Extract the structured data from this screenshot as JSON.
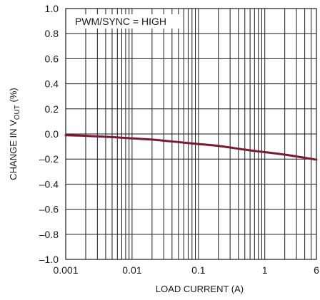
{
  "chart_data": {
    "type": "line",
    "annotation": "PWM/SYNC = HIGH",
    "xlabel": "LOAD CURRENT (A)",
    "ylabel": {
      "prefix": "CHANGE IN V",
      "subscript": "OUT",
      "suffix": " (%)"
    },
    "x_scale": "log",
    "xlim": [
      0.001,
      6
    ],
    "ylim": [
      -1.0,
      1.0
    ],
    "grid": true,
    "x_ticks": [
      {
        "value": 0.001,
        "label": "0.001"
      },
      {
        "value": 0.01,
        "label": "0.01"
      },
      {
        "value": 0.1,
        "label": "0.1"
      },
      {
        "value": 1,
        "label": "1"
      },
      {
        "value": 6,
        "label": "6"
      }
    ],
    "y_ticks": [
      {
        "value": 1.0,
        "label": "1.0"
      },
      {
        "value": 0.8,
        "label": "0.8"
      },
      {
        "value": 0.6,
        "label": "0.6"
      },
      {
        "value": 0.4,
        "label": "0.4"
      },
      {
        "value": 0.2,
        "label": "0.2"
      },
      {
        "value": 0.0,
        "label": "0.0"
      },
      {
        "value": -0.2,
        "label": "–0.2"
      },
      {
        "value": -0.4,
        "label": "–0.4"
      },
      {
        "value": -0.6,
        "label": "–0.6"
      },
      {
        "value": -0.8,
        "label": "–0.8"
      },
      {
        "value": -1.0,
        "label": "–1.0"
      }
    ],
    "series": [
      {
        "color": "#7a1a2e",
        "x": [
          0.001,
          0.002,
          0.005,
          0.01,
          0.02,
          0.05,
          0.1,
          0.2,
          0.5,
          1,
          2,
          4,
          6
        ],
        "y": [
          -0.01,
          -0.015,
          -0.025,
          -0.035,
          -0.045,
          -0.065,
          -0.08,
          -0.095,
          -0.125,
          -0.145,
          -0.165,
          -0.19,
          -0.205
        ]
      }
    ]
  }
}
